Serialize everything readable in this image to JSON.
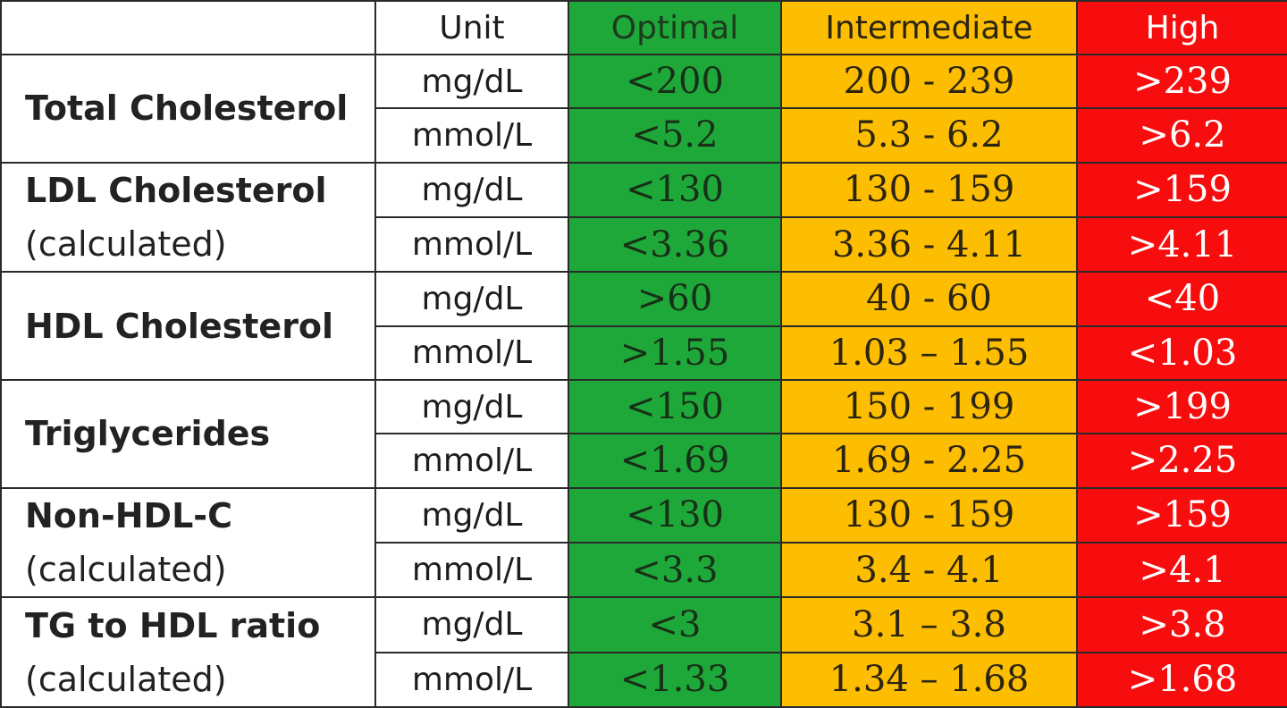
{
  "header": {
    "unit": "Unit",
    "optimal": "Optimal",
    "intermediate": "Intermediate",
    "high": "High"
  },
  "colors": {
    "optimal": "#1fa83a",
    "intermediate": "#fdbd00",
    "high": "#f70d0d"
  },
  "rows": [
    {
      "name": "Total Cholesterol",
      "sub": "",
      "mgdl": {
        "unit": "mg/dL",
        "optimal": "<200",
        "intermediate": "200 - 239",
        "high": ">239"
      },
      "mmol": {
        "unit": "mmol/L",
        "optimal": "<5.2",
        "intermediate": "5.3 - 6.2",
        "high": ">6.2"
      }
    },
    {
      "name": "LDL Cholesterol",
      "sub": "(calculated)",
      "mgdl": {
        "unit": "mg/dL",
        "optimal": "<130",
        "intermediate": "130 - 159",
        "high": ">159"
      },
      "mmol": {
        "unit": "mmol/L",
        "optimal": "<3.36",
        "intermediate": "3.36 - 4.11",
        "high": ">4.11"
      }
    },
    {
      "name": "HDL Cholesterol",
      "sub": "",
      "mgdl": {
        "unit": "mg/dL",
        "optimal": ">60",
        "intermediate": "40 - 60",
        "high": "<40"
      },
      "mmol": {
        "unit": "mmol/L",
        "optimal": ">1.55",
        "intermediate": "1.03 – 1.55",
        "high": "<1.03"
      }
    },
    {
      "name": "Triglycerides",
      "sub": "",
      "mgdl": {
        "unit": "mg/dL",
        "optimal": "<150",
        "intermediate": "150 - 199",
        "high": ">199"
      },
      "mmol": {
        "unit": "mmol/L",
        "optimal": "<1.69",
        "intermediate": "1.69 - 2.25",
        "high": ">2.25"
      }
    },
    {
      "name": "Non-HDL-C",
      "sub": "(calculated)",
      "mgdl": {
        "unit": "mg/dL",
        "optimal": "<130",
        "intermediate": "130 - 159",
        "high": ">159"
      },
      "mmol": {
        "unit": "mmol/L",
        "optimal": "<3.3",
        "intermediate": "3.4 - 4.1",
        "high": ">4.1"
      }
    },
    {
      "name": "TG to HDL ratio",
      "sub": "(calculated)",
      "mgdl": {
        "unit": "mg/dL",
        "optimal": "<3",
        "intermediate": "3.1 – 3.8",
        "high": ">3.8"
      },
      "mmol": {
        "unit": "mmol/L",
        "optimal": "<1.33",
        "intermediate": "1.34 – 1.68",
        "high": ">1.68"
      }
    }
  ]
}
